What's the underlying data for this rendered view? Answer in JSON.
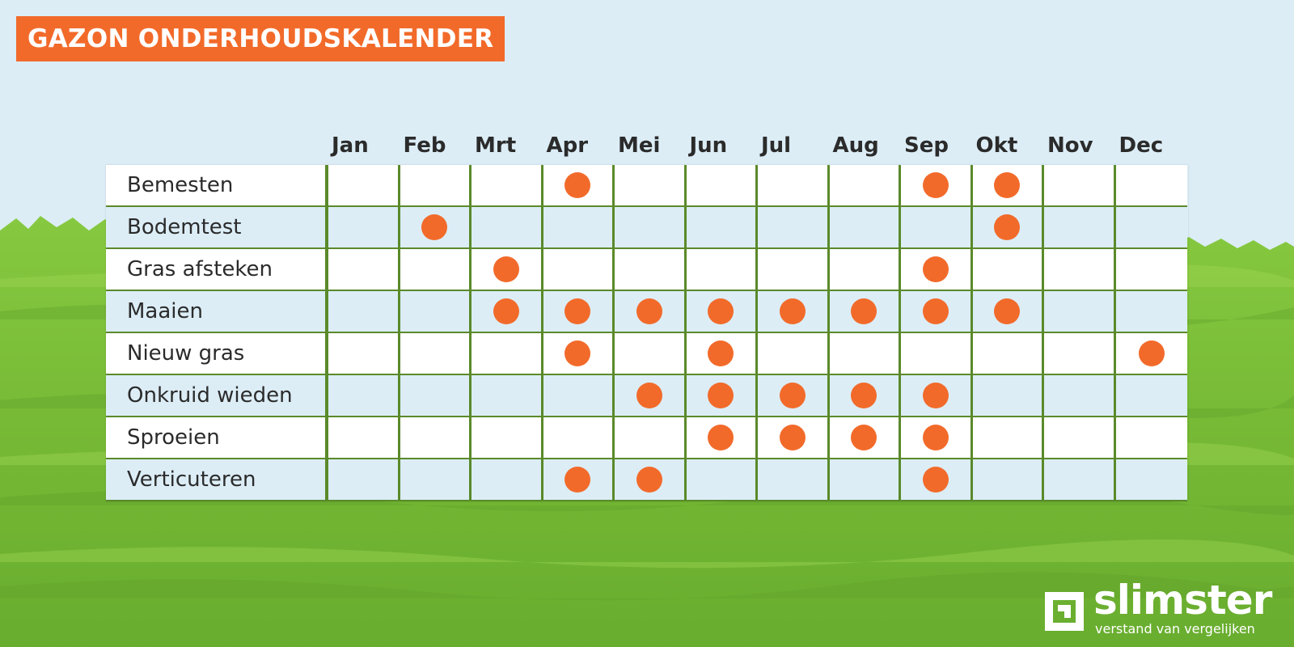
{
  "title": "GAZON ONDERHOUDSKALENDER",
  "months": [
    "Jan",
    "Feb",
    "Mrt",
    "Apr",
    "Mei",
    "Jun",
    "Jul",
    "Aug",
    "Sep",
    "Okt",
    "Nov",
    "Dec"
  ],
  "tasks": [
    {
      "name": "Bemesten",
      "months": [
        4,
        9,
        10
      ]
    },
    {
      "name": "Bodemtest",
      "months": [
        2,
        10
      ]
    },
    {
      "name": "Gras afsteken",
      "months": [
        3,
        9
      ]
    },
    {
      "name": "Maaien",
      "months": [
        3,
        4,
        5,
        6,
        7,
        8,
        9,
        10
      ]
    },
    {
      "name": "Nieuw gras",
      "months": [
        4,
        6,
        12
      ]
    },
    {
      "name": "Onkruid wieden",
      "months": [
        5,
        6,
        7,
        8,
        9
      ]
    },
    {
      "name": "Sproeien",
      "months": [
        6,
        7,
        8,
        9
      ]
    },
    {
      "name": "Verticuteren",
      "months": [
        4,
        5,
        9
      ]
    }
  ],
  "colors": {
    "accent": "#f26a2a",
    "sky": "#dcedf6",
    "grass": "#7cbf3a",
    "grid_line": "#5a8a2a"
  },
  "logo": {
    "brand": "slimster",
    "tagline": "verstand van vergelijken",
    "icon": "slimster-logo-mark-icon"
  }
}
